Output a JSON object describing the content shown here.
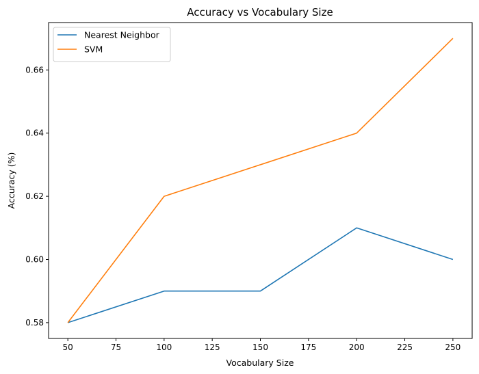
{
  "chart_data": {
    "type": "line",
    "title": "Accuracy vs Vocabulary Size",
    "xlabel": "Vocabulary Size",
    "ylabel": "Accuracy (%)",
    "x": [
      50,
      100,
      150,
      200,
      250
    ],
    "xlim": [
      40,
      260
    ],
    "ylim": [
      0.575,
      0.675
    ],
    "xticks": [
      50,
      75,
      100,
      125,
      150,
      175,
      200,
      225,
      250
    ],
    "yticks": [
      0.58,
      0.6,
      0.62,
      0.64,
      0.66
    ],
    "grid": false,
    "legend_position": "top-left",
    "series": [
      {
        "name": "Nearest Neighbor",
        "color": "#1f77b4",
        "values": [
          0.58,
          0.59,
          0.59,
          0.61,
          0.6
        ]
      },
      {
        "name": "SVM",
        "color": "#ff7f0e",
        "values": [
          0.58,
          0.62,
          0.63,
          0.64,
          0.67
        ]
      }
    ]
  }
}
